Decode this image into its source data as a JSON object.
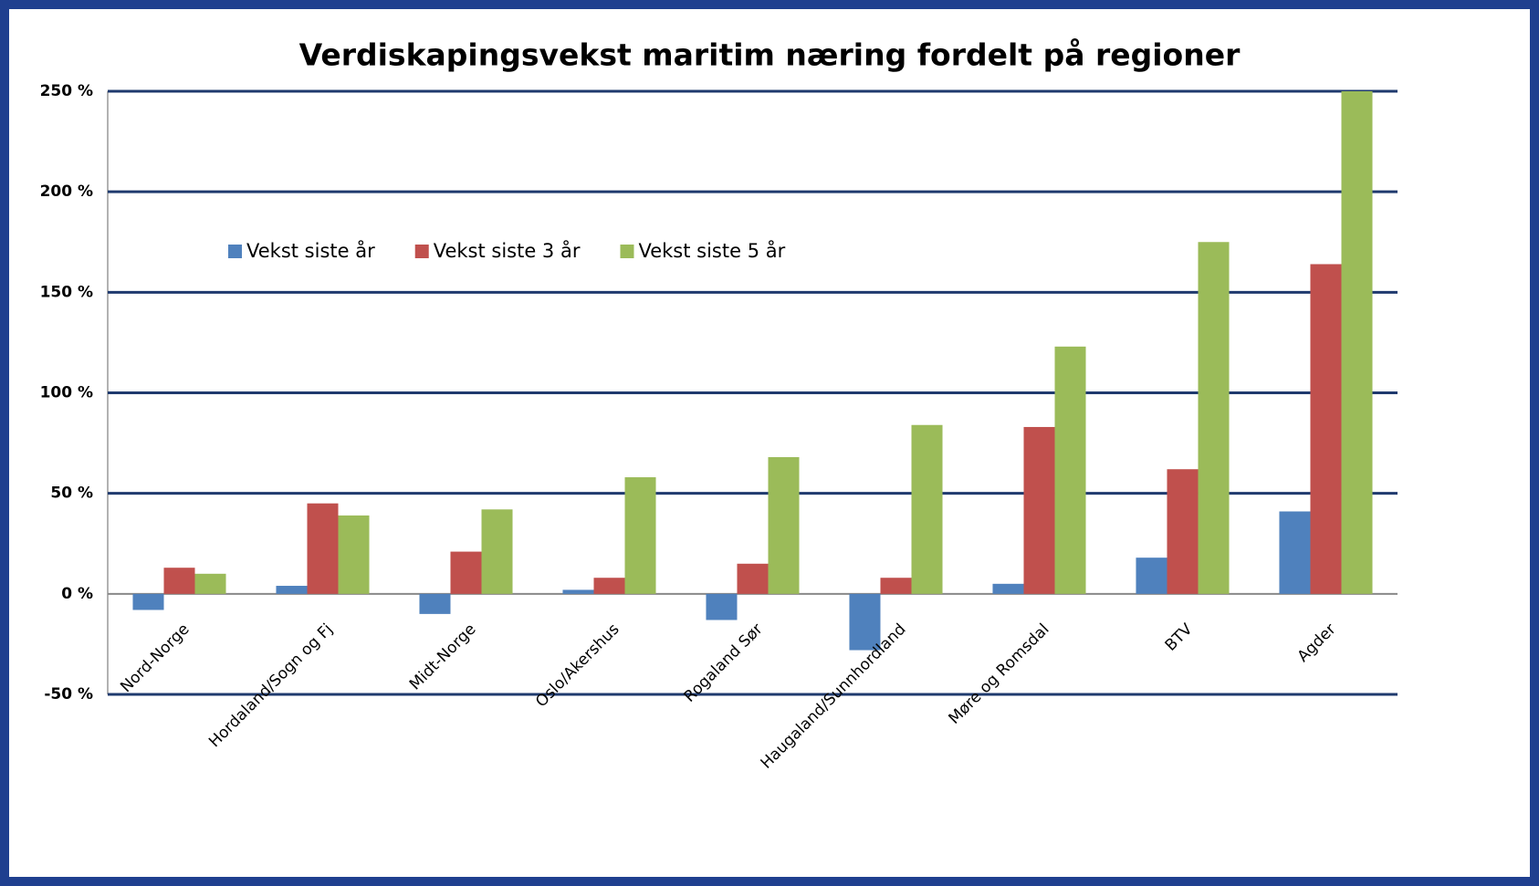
{
  "chart_data": {
    "type": "bar",
    "title": "Verdiskapingsvekst maritim næring fordelt på regioner",
    "categories": [
      "Nord-Norge",
      "Hordaland/Sogn og Fj",
      "Midt-Norge",
      "Oslo/Akershus",
      "Rogaland Sør",
      "Haugaland/Sunnhordland",
      "Møre og Romsdal",
      "BTV",
      "Agder"
    ],
    "series": [
      {
        "name": "Vekst siste år",
        "color": "#4f81bd",
        "values": [
          -8,
          4,
          -10,
          2,
          -13,
          -28,
          5,
          18,
          41
        ]
      },
      {
        "name": "Vekst siste 3 år",
        "color": "#c0504d",
        "values": [
          13,
          45,
          21,
          8,
          15,
          8,
          83,
          62,
          164
        ]
      },
      {
        "name": "Vekst siste 5 år",
        "color": "#9bbb59",
        "values": [
          10,
          39,
          42,
          58,
          68,
          84,
          123,
          175,
          250
        ]
      }
    ],
    "ylim": [
      -50,
      250
    ],
    "yticks": [
      {
        "value": -50,
        "label": "-50 %"
      },
      {
        "value": 0,
        "label": "0 %"
      },
      {
        "value": 50,
        "label": "50 %"
      },
      {
        "value": 100,
        "label": "100 %"
      },
      {
        "value": 150,
        "label": "150 %"
      },
      {
        "value": 200,
        "label": "200 %"
      },
      {
        "value": 250,
        "label": "250 %"
      }
    ],
    "grid": true,
    "legend_position": "top-left"
  }
}
